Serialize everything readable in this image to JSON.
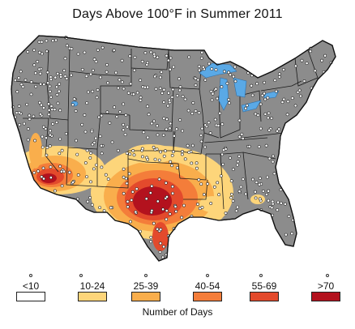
{
  "title": "Days Above 100°F in Summer 2011",
  "legend": {
    "title": "Number of Days",
    "classes": [
      {
        "label": "<10",
        "color": "#ffffff"
      },
      {
        "label": "10-24",
        "color": "#fdd57a"
      },
      {
        "label": "25-39",
        "color": "#f9ae4c"
      },
      {
        "label": "40-54",
        "color": "#f47d3a"
      },
      {
        "label": "55-69",
        "color": "#e34a2c"
      },
      {
        "label": ">70",
        "color": "#b3121e"
      }
    ]
  },
  "colors": {
    "land": "#8c8c8c",
    "water": "#5aa9e6",
    "border": "#1a1a1a",
    "station_fill": "#ffffff"
  }
}
